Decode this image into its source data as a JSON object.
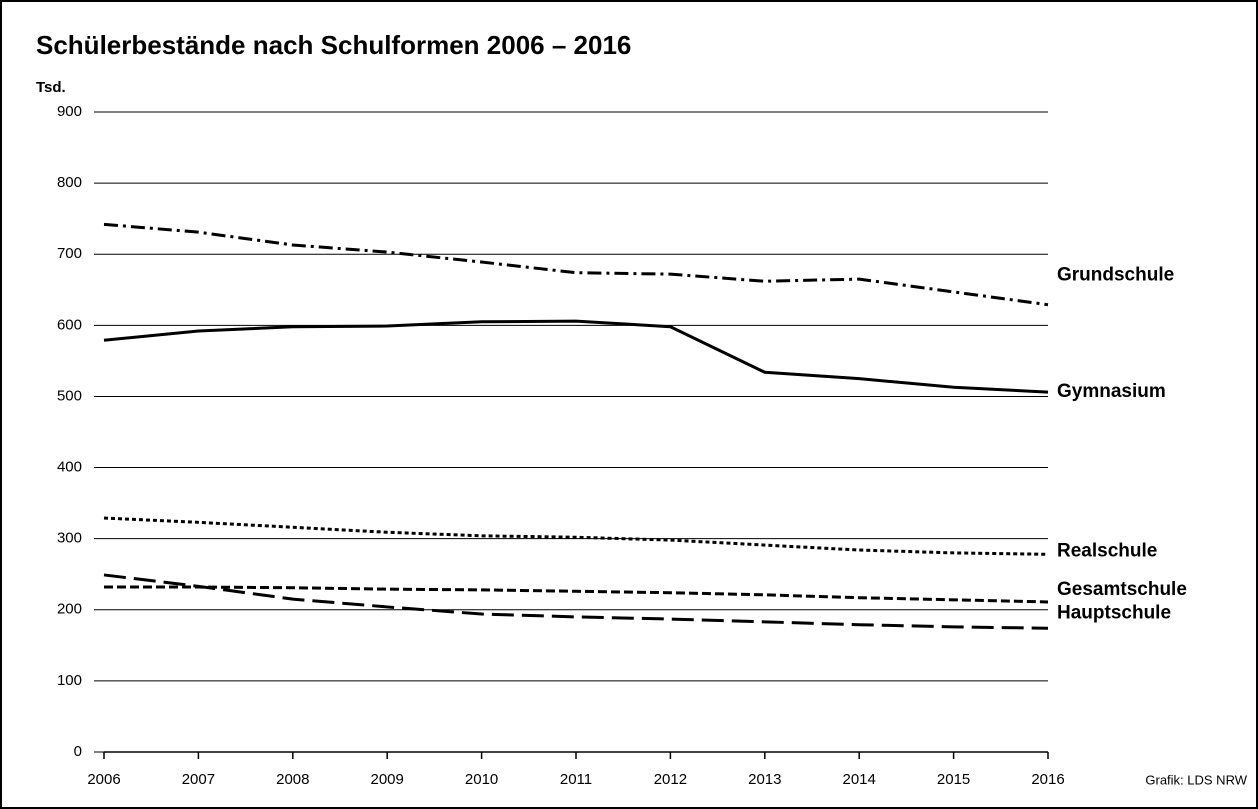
{
  "chart_data": {
    "type": "line",
    "title": "Schülerbestände nach Schulformen 2006 – 2016",
    "y_label": "Tsd.",
    "source": "Grafik: LDS NRW",
    "categories": [
      "2006",
      "2007",
      "2008",
      "2009",
      "2010",
      "2011",
      "2012",
      "2013",
      "2014",
      "2015",
      "2016"
    ],
    "series": [
      {
        "name": "Grundschule",
        "color": "#000000",
        "dash": "14 5 3 5",
        "values": [
          742,
          731,
          713,
          703,
          689,
          674,
          672,
          662,
          665,
          647,
          629
        ]
      },
      {
        "name": "Gymnasium",
        "color": "#000000",
        "dash": "none",
        "values": [
          579,
          592,
          598,
          599,
          605,
          606,
          598,
          534,
          525,
          513,
          506
        ]
      },
      {
        "name": "Realschule",
        "color": "#000000",
        "dash": "4 3",
        "values": [
          329,
          323,
          316,
          309,
          304,
          302,
          298,
          291,
          284,
          280,
          278
        ]
      },
      {
        "name": "Gesamtschule",
        "color": "#000000",
        "dash": "9 4",
        "values": [
          232,
          232,
          231,
          229,
          228,
          226,
          224,
          221,
          217,
          214,
          211
        ]
      },
      {
        "name": "Hauptschule",
        "color": "#000000",
        "dash": "22 8",
        "values": [
          249,
          233,
          215,
          204,
          194,
          190,
          187,
          183,
          179,
          176,
          174
        ]
      }
    ],
    "ylim": [
      0,
      900
    ],
    "yticks": [
      0,
      100,
      200,
      300,
      400,
      500,
      600,
      700,
      800,
      900
    ],
    "grid": true
  }
}
